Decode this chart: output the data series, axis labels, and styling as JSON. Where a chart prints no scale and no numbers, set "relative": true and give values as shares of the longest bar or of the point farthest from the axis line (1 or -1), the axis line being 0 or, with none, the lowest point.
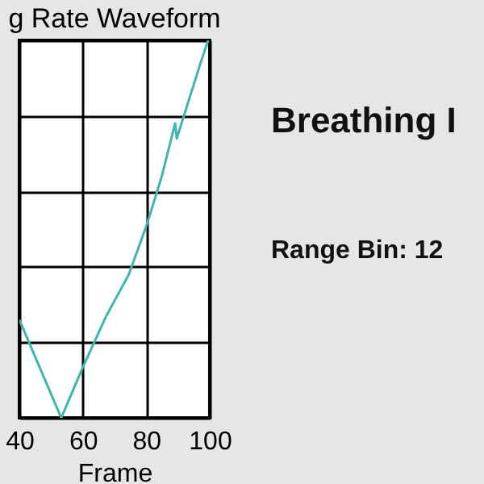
{
  "chart_data": {
    "type": "line",
    "title": "g Rate Waveform",
    "xlabel": "Frame",
    "x": [
      40,
      53.2,
      59.8,
      67.4,
      74.5,
      80.1,
      84.9,
      89.1,
      89.6,
      97.1,
      99.5
    ],
    "series": [
      {
        "color": "#3fb5b0",
        "values": [
          0.26,
          0,
          0.13,
          0.27,
          0.38,
          0.51,
          0.64,
          0.78,
          0.74,
          0.94,
          1
        ]
      }
    ],
    "relative": true,
    "xlim": [
      40,
      100
    ],
    "xticks": [
      40,
      60,
      80,
      100
    ],
    "grid": true,
    "annotations": [
      "Breathing I",
      "Range Bin: 12"
    ]
  }
}
